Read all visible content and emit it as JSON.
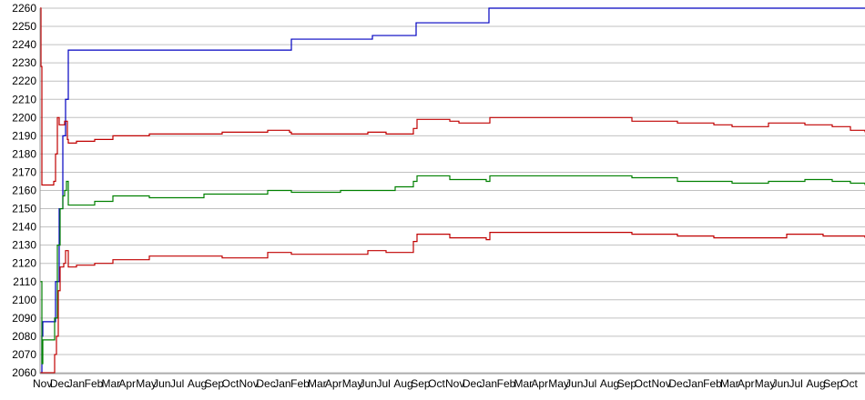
{
  "chart_data": {
    "type": "line",
    "title": "",
    "xlabel": "",
    "ylabel": "",
    "ylim": [
      2060,
      2260
    ],
    "yticks": [
      2060,
      2070,
      2080,
      2090,
      2100,
      2110,
      2120,
      2130,
      2140,
      2150,
      2160,
      2170,
      2180,
      2190,
      2200,
      2210,
      2220,
      2230,
      2240,
      2250,
      2260
    ],
    "xlim": [
      0,
      906
    ],
    "grid": true,
    "legend": "none",
    "xtick_labels": [
      "Nov",
      "Dec",
      "Jan",
      "Feb",
      "Mar",
      "Apr",
      "May",
      "Jun",
      "Jul",
      "Aug",
      "Sep",
      "Oct",
      "Nov",
      "Dec",
      "Jan",
      "Feb",
      "Mar",
      "Apr",
      "May",
      "Jun",
      "Jul",
      "Aug",
      "Sep",
      "Oct",
      "Nov",
      "Dec",
      "Jan",
      "Feb",
      "Mar",
      "Apr",
      "May",
      "Jun",
      "Jul",
      "Aug",
      "Sep",
      "Oct",
      "Nov",
      "Dec",
      "Jan",
      "Feb",
      "Mar",
      "Apr",
      "May",
      "Jun",
      "Jul",
      "Aug",
      "Sep",
      "Oct"
    ],
    "series": [
      {
        "color": "#0000c0",
        "points": [
          [
            0,
            2060
          ],
          [
            2,
            2080
          ],
          [
            3,
            2088
          ],
          [
            14,
            2088
          ],
          [
            17,
            2110
          ],
          [
            21,
            2150
          ],
          [
            25,
            2190
          ],
          [
            28,
            2210
          ],
          [
            31,
            2237
          ],
          [
            274,
            2237
          ],
          [
            276,
            2243
          ],
          [
            363,
            2243
          ],
          [
            365,
            2245
          ],
          [
            411,
            2245
          ],
          [
            413,
            2252
          ],
          [
            489,
            2252
          ],
          [
            493,
            2260
          ],
          [
            906,
            2260
          ]
        ]
      },
      {
        "color": "#c00000",
        "points": [
          [
            0,
            2260
          ],
          [
            1,
            2228
          ],
          [
            2,
            2163
          ],
          [
            12,
            2163
          ],
          [
            15,
            2165
          ],
          [
            17,
            2180
          ],
          [
            19,
            2200
          ],
          [
            21,
            2196
          ],
          [
            24,
            2196
          ],
          [
            27,
            2198
          ],
          [
            30,
            2188
          ],
          [
            31,
            2186
          ],
          [
            40,
            2187
          ],
          [
            60,
            2188
          ],
          [
            80,
            2190
          ],
          [
            120,
            2191
          ],
          [
            200,
            2192
          ],
          [
            250,
            2193
          ],
          [
            274,
            2192
          ],
          [
            276,
            2191
          ],
          [
            360,
            2192
          ],
          [
            380,
            2191
          ],
          [
            410,
            2194
          ],
          [
            414,
            2199
          ],
          [
            450,
            2198
          ],
          [
            460,
            2197
          ],
          [
            490,
            2197
          ],
          [
            494,
            2200
          ],
          [
            580,
            2200
          ],
          [
            650,
            2198
          ],
          [
            700,
            2197
          ],
          [
            740,
            2196
          ],
          [
            760,
            2195
          ],
          [
            800,
            2197
          ],
          [
            840,
            2196
          ],
          [
            870,
            2195
          ],
          [
            890,
            2193
          ],
          [
            906,
            2192
          ]
        ]
      },
      {
        "color": "#008000",
        "points": [
          [
            0,
            2110
          ],
          [
            2,
            2065
          ],
          [
            3,
            2078
          ],
          [
            13,
            2078
          ],
          [
            16,
            2090
          ],
          [
            19,
            2130
          ],
          [
            22,
            2150
          ],
          [
            25,
            2157
          ],
          [
            27,
            2160
          ],
          [
            29,
            2165
          ],
          [
            31,
            2152
          ],
          [
            40,
            2152
          ],
          [
            60,
            2154
          ],
          [
            80,
            2157
          ],
          [
            120,
            2156
          ],
          [
            180,
            2158
          ],
          [
            250,
            2160
          ],
          [
            274,
            2160
          ],
          [
            276,
            2159
          ],
          [
            330,
            2160
          ],
          [
            360,
            2160
          ],
          [
            390,
            2162
          ],
          [
            410,
            2165
          ],
          [
            414,
            2168
          ],
          [
            450,
            2166
          ],
          [
            490,
            2165
          ],
          [
            494,
            2168
          ],
          [
            600,
            2168
          ],
          [
            650,
            2167
          ],
          [
            700,
            2165
          ],
          [
            760,
            2164
          ],
          [
            800,
            2165
          ],
          [
            840,
            2166
          ],
          [
            870,
            2165
          ],
          [
            890,
            2164
          ],
          [
            906,
            2163
          ]
        ]
      },
      {
        "color": "#c00000",
        "points": [
          [
            0,
            2060
          ],
          [
            14,
            2060
          ],
          [
            16,
            2070
          ],
          [
            18,
            2080
          ],
          [
            20,
            2105
          ],
          [
            22,
            2118
          ],
          [
            26,
            2120
          ],
          [
            28,
            2127
          ],
          [
            31,
            2118
          ],
          [
            40,
            2119
          ],
          [
            60,
            2120
          ],
          [
            80,
            2122
          ],
          [
            120,
            2124
          ],
          [
            200,
            2123
          ],
          [
            250,
            2126
          ],
          [
            274,
            2126
          ],
          [
            276,
            2125
          ],
          [
            360,
            2127
          ],
          [
            380,
            2126
          ],
          [
            410,
            2132
          ],
          [
            414,
            2136
          ],
          [
            450,
            2134
          ],
          [
            490,
            2133
          ],
          [
            494,
            2137
          ],
          [
            600,
            2137
          ],
          [
            650,
            2136
          ],
          [
            700,
            2135
          ],
          [
            740,
            2134
          ],
          [
            780,
            2134
          ],
          [
            820,
            2136
          ],
          [
            860,
            2135
          ],
          [
            906,
            2134
          ]
        ]
      }
    ]
  }
}
